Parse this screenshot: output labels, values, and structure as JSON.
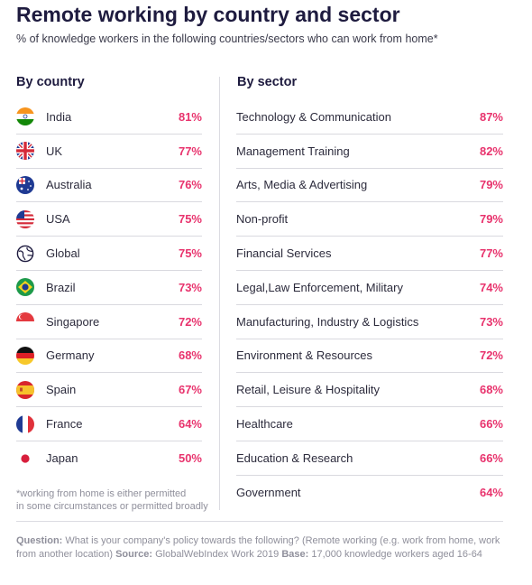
{
  "header": {
    "title": "Remote working by country and sector",
    "subtitle": "% of knowledge workers in the following countries/sectors who can work from home*"
  },
  "footnote": {
    "line1": "*working from home is either permitted",
    "line2": "in some circumstances or permitted broadly"
  },
  "source": {
    "question_label": "Question:",
    "question_text": " What is your company's policy towards the following? (Remote working (e.g. work from home, work from another location) ",
    "source_label": "Source:",
    "source_text": " GlobalWebIndex Work 2019 ",
    "base_label": "Base:",
    "base_text": " 17,000 knowledge workers aged 16-64"
  },
  "colors": {
    "value": "#e8336d",
    "title": "#1e1b3f"
  },
  "chart_data": [
    {
      "type": "table",
      "title": "By country",
      "categories": [
        "India",
        "UK",
        "Australia",
        "USA",
        "Global",
        "Brazil",
        "Singapore",
        "Germany",
        "Spain",
        "France",
        "Japan"
      ],
      "value_labels": [
        "81%",
        "77%",
        "76%",
        "75%",
        "75%",
        "73%",
        "72%",
        "68%",
        "67%",
        "64%",
        "50%"
      ],
      "values": [
        81,
        77,
        76,
        75,
        75,
        73,
        72,
        68,
        67,
        64,
        50
      ],
      "icons": [
        "india-flag-icon",
        "uk-flag-icon",
        "australia-flag-icon",
        "usa-flag-icon",
        "globe-icon",
        "brazil-flag-icon",
        "singapore-flag-icon",
        "germany-flag-icon",
        "spain-flag-icon",
        "france-flag-icon",
        "japan-flag-icon"
      ]
    },
    {
      "type": "table",
      "title": "By sector",
      "categories": [
        "Technology & Communication",
        "Management Training",
        "Arts, Media & Advertising",
        "Non-profit",
        "Financial Services",
        "Legal,Law Enforcement, Military",
        "Manufacturing, Industry & Logistics",
        "Environment & Resources",
        "Retail, Leisure & Hospitality",
        "Healthcare",
        "Education & Research",
        "Government"
      ],
      "value_labels": [
        "87%",
        "82%",
        "79%",
        "79%",
        "77%",
        "74%",
        "73%",
        "72%",
        "68%",
        "66%",
        "66%",
        "64%"
      ],
      "values": [
        87,
        82,
        79,
        79,
        77,
        74,
        73,
        72,
        68,
        66,
        66,
        64
      ]
    }
  ]
}
